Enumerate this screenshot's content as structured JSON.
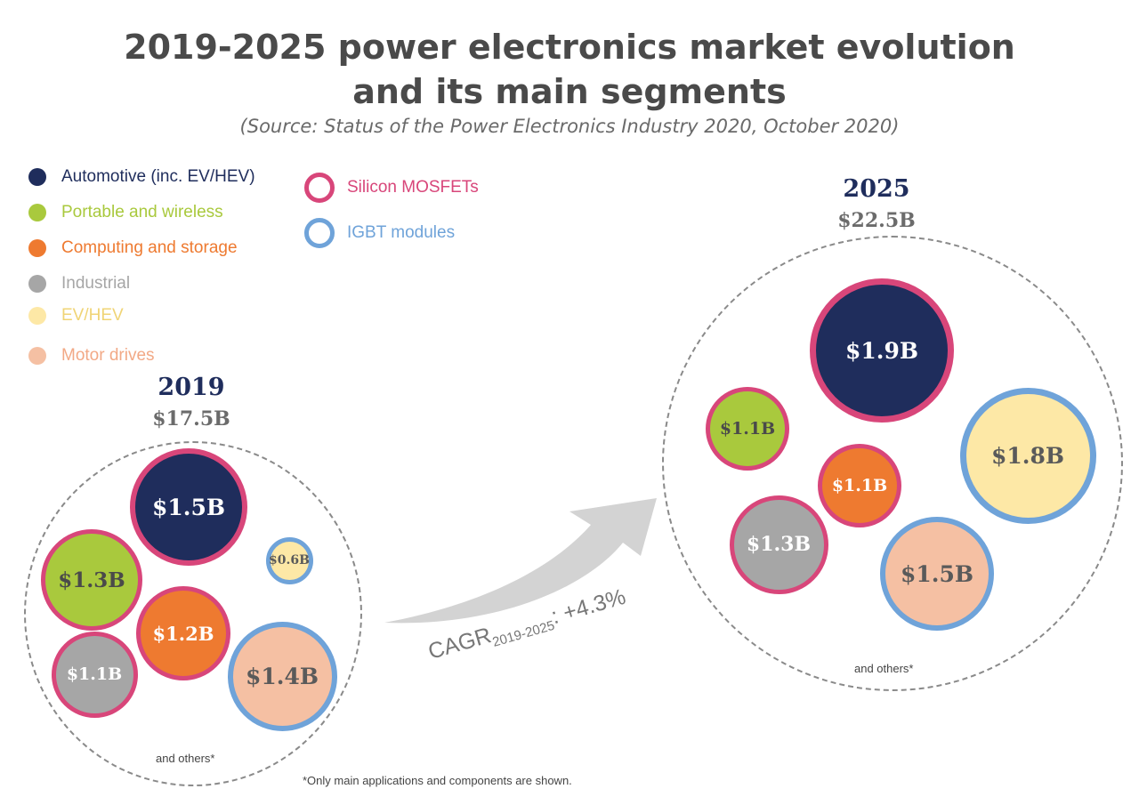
{
  "title_line1": "2019-2025 power electronics market evolution",
  "title_line2": "and its main segments",
  "source": "(Source: Status of the Power Electronics Industry 2020, October 2020)",
  "legend": {
    "segments": [
      {
        "label": "Automotive (inc. EV/HEV)",
        "color": "#1f2d5c"
      },
      {
        "label": "Portable and wireless",
        "color": "#a9c93d"
      },
      {
        "label": "Computing and storage",
        "color": "#ee7a30"
      },
      {
        "label": "Industrial",
        "color": "#a6a6a6"
      },
      {
        "label": "EV/HEV",
        "color": "#fde8a6"
      },
      {
        "label": "Motor drives",
        "color": "#f5c0a3"
      }
    ],
    "components": [
      {
        "label": "Silicon MOSFETs",
        "color": "#d8467a"
      },
      {
        "label": "IGBT modules",
        "color": "#6fa3d9"
      }
    ]
  },
  "cagr": {
    "prefix": "CAGR",
    "sub": "2019-2025",
    "suffix": ": +4.3%"
  },
  "and_others": "and others*",
  "footnote": "*Only main applications and components are shown.",
  "chart_data": [
    {
      "type": "bubble",
      "year": "2019",
      "total": "$17.5B",
      "bubbles": [
        {
          "segment": "Automotive (inc. EV/HEV)",
          "component": "Silicon MOSFETs",
          "label": "$1.5B",
          "value": 1.5
        },
        {
          "segment": "Portable and wireless",
          "component": "Silicon MOSFETs",
          "label": "$1.3B",
          "value": 1.3
        },
        {
          "segment": "Computing and storage",
          "component": "Silicon MOSFETs",
          "label": "$1.2B",
          "value": 1.2
        },
        {
          "segment": "Industrial",
          "component": "Silicon MOSFETs",
          "label": "$1.1B",
          "value": 1.1
        },
        {
          "segment": "EV/HEV",
          "component": "IGBT modules",
          "label": "$0.6B",
          "value": 0.6
        },
        {
          "segment": "Motor drives",
          "component": "IGBT modules",
          "label": "$1.4B",
          "value": 1.4
        }
      ]
    },
    {
      "type": "bubble",
      "year": "2025",
      "total": "$22.5B",
      "bubbles": [
        {
          "segment": "Automotive (inc. EV/HEV)",
          "component": "Silicon MOSFETs",
          "label": "$1.9B",
          "value": 1.9
        },
        {
          "segment": "Portable and wireless",
          "component": "Silicon MOSFETs",
          "label": "$1.1B",
          "value": 1.1
        },
        {
          "segment": "Computing and storage",
          "component": "Silicon MOSFETs",
          "label": "$1.1B",
          "value": 1.1
        },
        {
          "segment": "Industrial",
          "component": "Silicon MOSFETs",
          "label": "$1.3B",
          "value": 1.3
        },
        {
          "segment": "EV/HEV",
          "component": "IGBT modules",
          "label": "$1.8B",
          "value": 1.8
        },
        {
          "segment": "Motor drives",
          "component": "IGBT modules",
          "label": "$1.5B",
          "value": 1.5
        }
      ]
    }
  ]
}
